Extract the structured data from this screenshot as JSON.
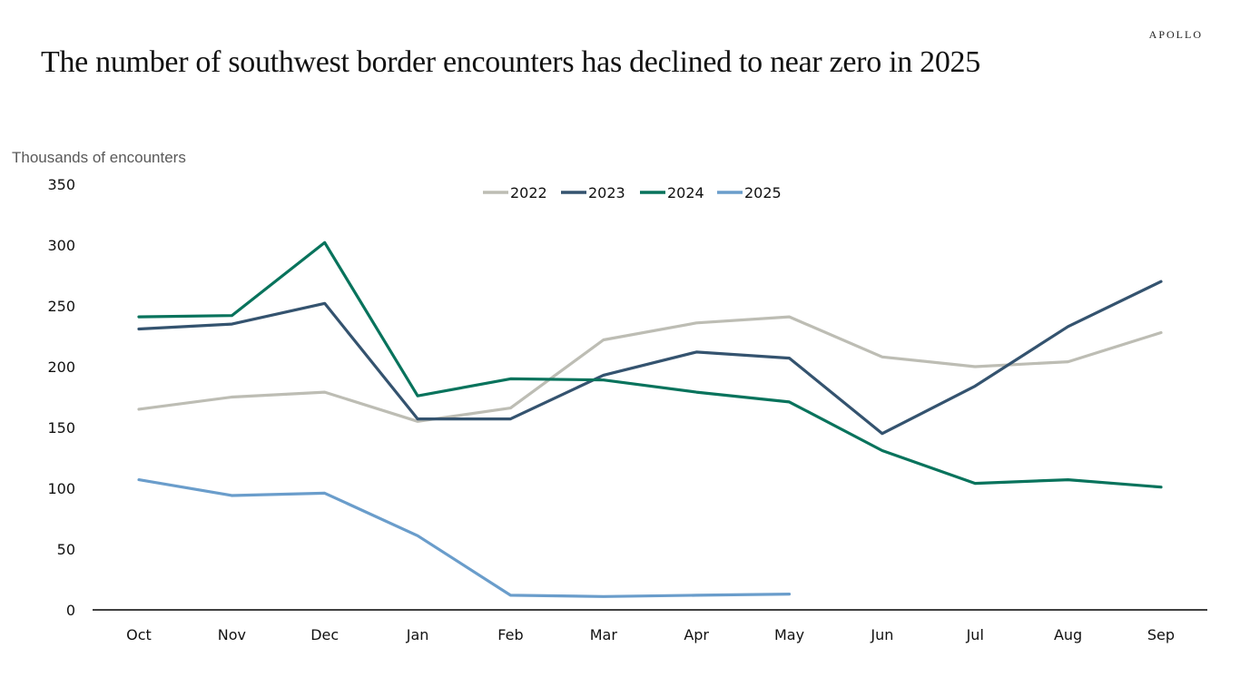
{
  "brand": "APOLLO",
  "title": "The number of southwest border encounters has declined to near zero in 2025",
  "chart_data": {
    "type": "line",
    "title": "The number of southwest border encounters has declined to near zero in 2025",
    "xlabel": "",
    "ylabel": "Thousands of encounters",
    "ylim": [
      0,
      350
    ],
    "yticks": [
      0,
      50,
      100,
      150,
      200,
      250,
      300,
      350
    ],
    "grid": false,
    "legend_position": "top-center",
    "categories": [
      "Oct",
      "Nov",
      "Dec",
      "Jan",
      "Feb",
      "Mar",
      "Apr",
      "May",
      "Jun",
      "Jul",
      "Aug",
      "Sep"
    ],
    "series": [
      {
        "name": "2022",
        "color": "#BDBDB4",
        "values": [
          165,
          175,
          179,
          155,
          166,
          222,
          236,
          241,
          208,
          200,
          204,
          228
        ]
      },
      {
        "name": "2023",
        "color": "#34536F",
        "values": [
          231,
          235,
          252,
          157,
          157,
          193,
          212,
          207,
          145,
          184,
          233,
          270
        ]
      },
      {
        "name": "2024",
        "color": "#08735C",
        "values": [
          241,
          242,
          302,
          176,
          190,
          189,
          179,
          171,
          131,
          104,
          107,
          101
        ]
      },
      {
        "name": "2025",
        "color": "#6A9DCB",
        "values": [
          107,
          94,
          96,
          61,
          12,
          11,
          12,
          13,
          null,
          null,
          null,
          null
        ]
      }
    ]
  }
}
